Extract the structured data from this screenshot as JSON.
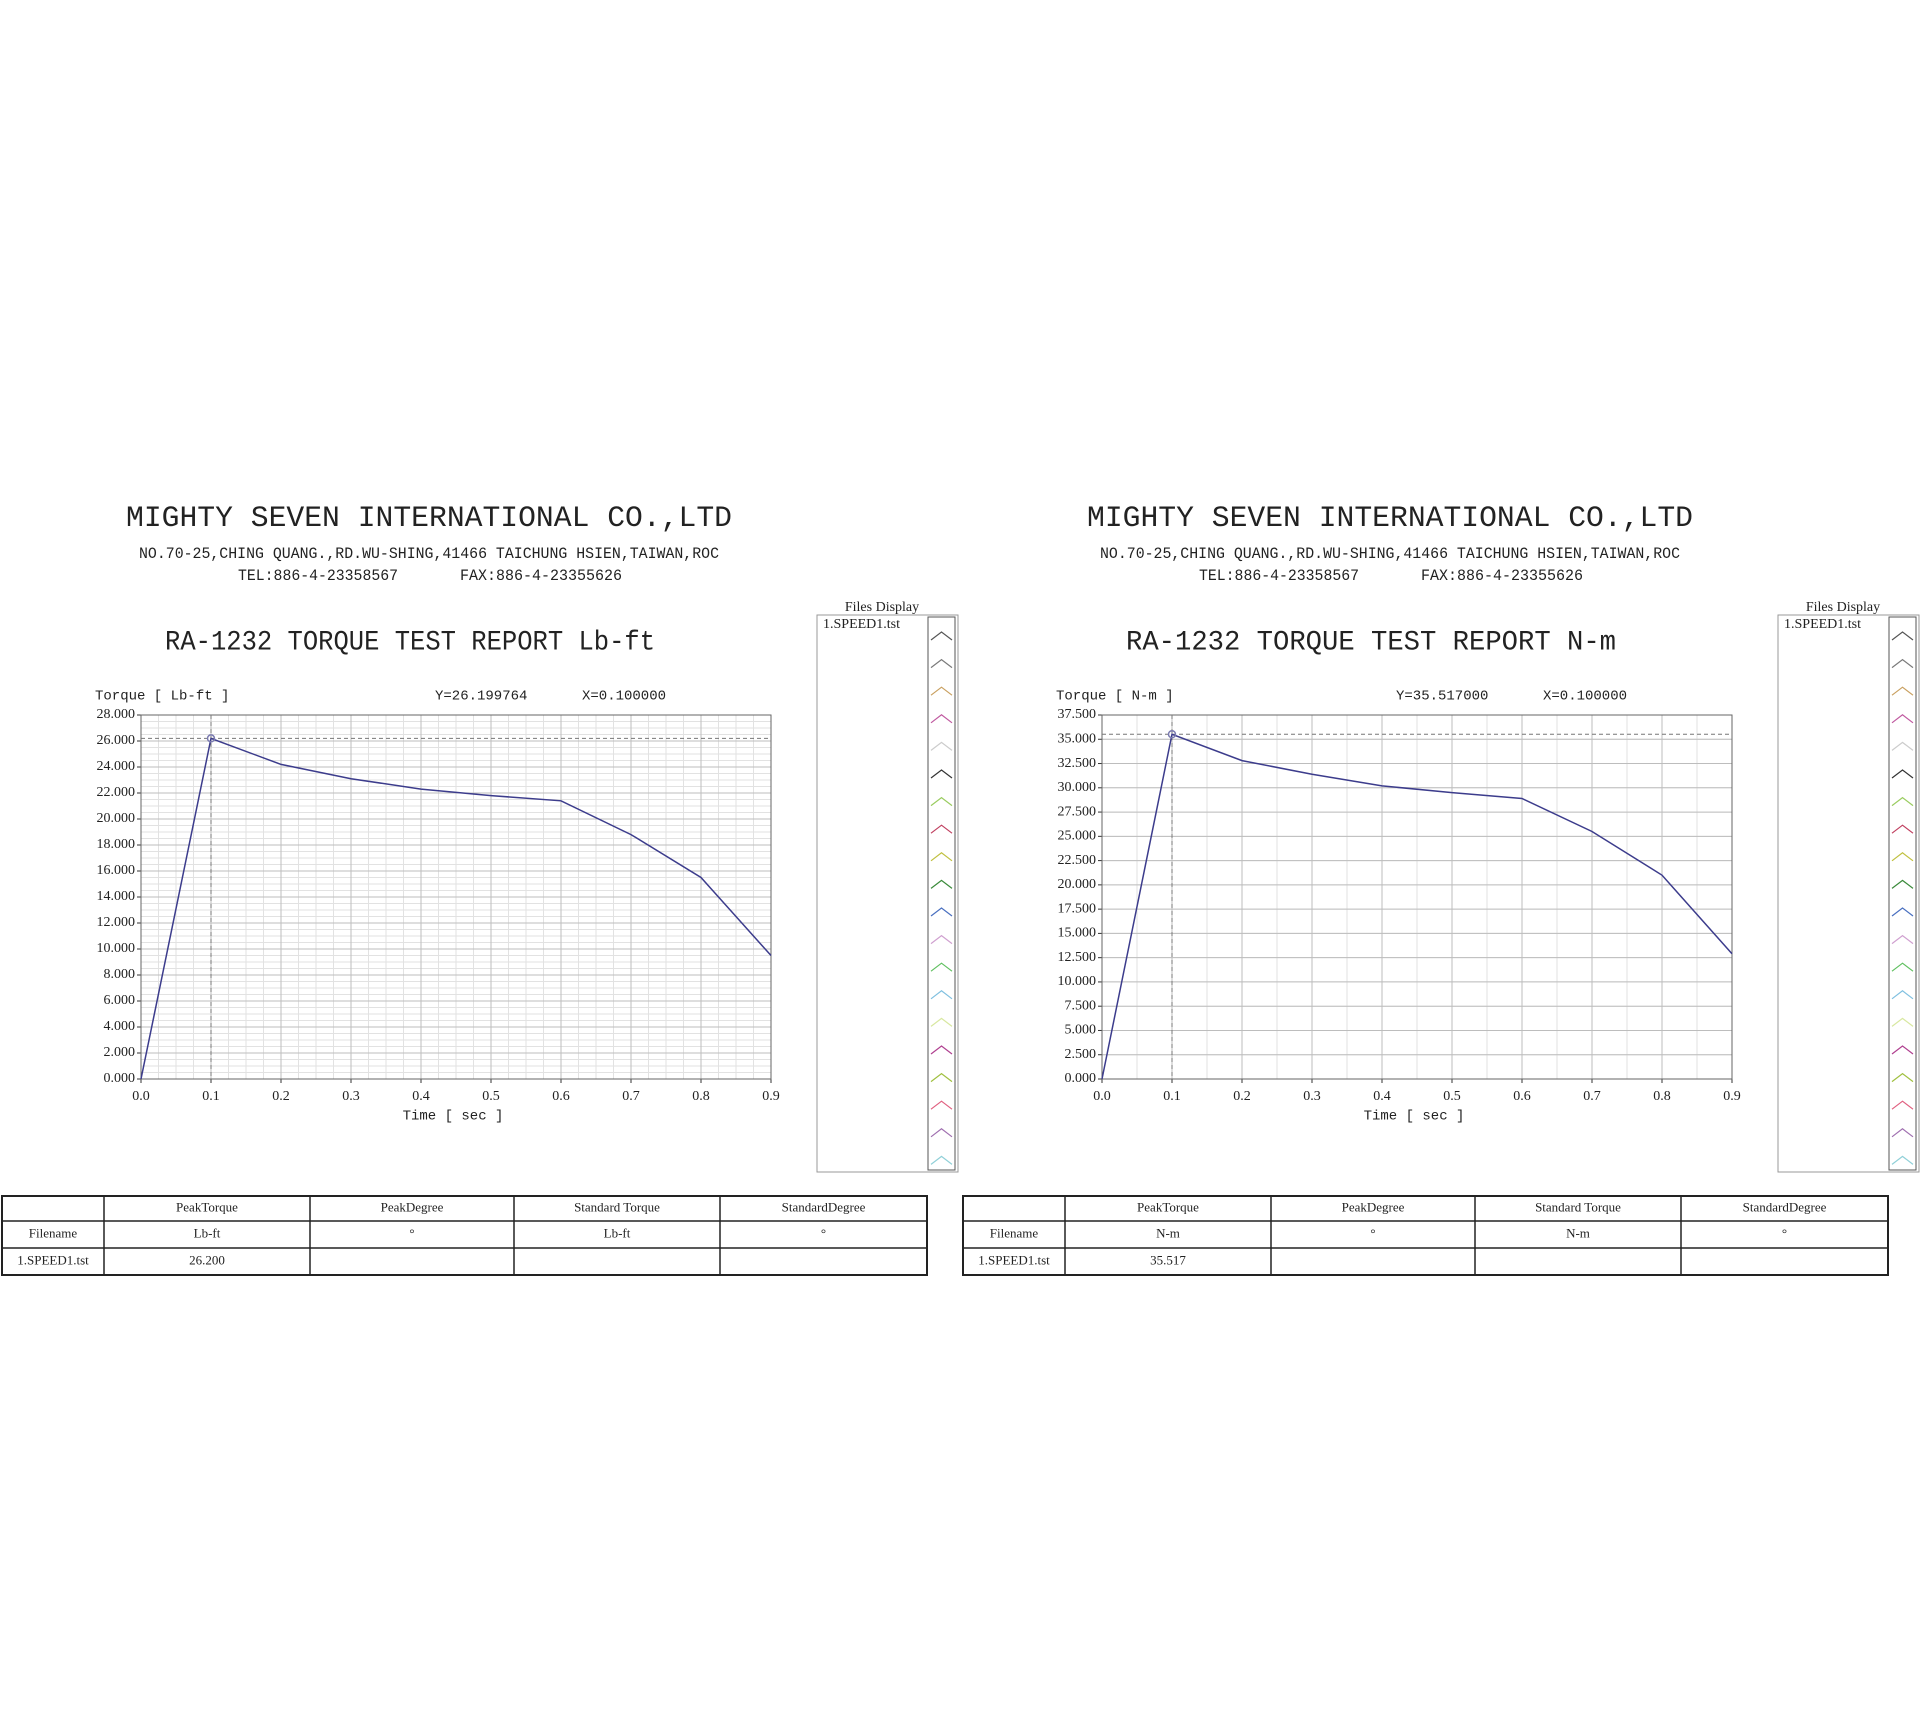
{
  "chart_data": [
    {
      "type": "line",
      "title": "RA-1232 TORQUE TEST REPORT Lb-ft",
      "y_label": "Torque [ Lb-ft ]",
      "x_label": "Time [ sec ]",
      "annotations": [
        "Y=26.199764",
        "X=0.100000"
      ],
      "x": [
        0,
        0.1,
        0.2,
        0.3,
        0.4,
        0.5,
        0.6,
        0.7,
        0.8,
        0.9
      ],
      "series": [
        {
          "name": "1.SPEED1.tst",
          "color": "#3c3c8c",
          "values": [
            0,
            26.2,
            24.2,
            23.1,
            22.3,
            21.8,
            21.4,
            18.8,
            15.5,
            9.5
          ]
        }
      ],
      "xlim": [
        0,
        0.9
      ],
      "ylim": [
        0,
        28
      ],
      "xticks": [
        {
          "value": 0,
          "label": "0.0"
        },
        0.1,
        0.2,
        0.3,
        0.4,
        0.5,
        0.6,
        0.7,
        0.8,
        0.9
      ],
      "yticks": [
        {
          "value": 0,
          "label": "0.000"
        },
        {
          "value": 2,
          "label": "2.000"
        },
        {
          "value": 4,
          "label": "4.000"
        },
        {
          "value": 6,
          "label": "6.000"
        },
        {
          "value": 8,
          "label": "8.000"
        },
        {
          "value": 10,
          "label": "10.000"
        },
        {
          "value": 12,
          "label": "12.000"
        },
        {
          "value": 14,
          "label": "14.000"
        },
        {
          "value": 16,
          "label": "16.000"
        },
        {
          "value": 18,
          "label": "18.000"
        },
        {
          "value": 20,
          "label": "20.000"
        },
        {
          "value": 22,
          "label": "22.000"
        },
        {
          "value": 24,
          "label": "24.000"
        },
        {
          "value": 26,
          "label": "26.000"
        },
        {
          "value": 28,
          "label": "28.000"
        }
      ],
      "grid": true
    },
    {
      "type": "line",
      "title": "RA-1232 TORQUE TEST REPORT N-m",
      "y_label": "Torque [ N-m ]",
      "x_label": "Time [ sec ]",
      "annotations": [
        "Y=35.517000",
        "X=0.100000"
      ],
      "x": [
        0,
        0.1,
        0.2,
        0.3,
        0.4,
        0.5,
        0.6,
        0.7,
        0.8,
        0.9
      ],
      "series": [
        {
          "name": "1.SPEED1.tst",
          "color": "#3c3c8c",
          "values": [
            0,
            35.517,
            32.8,
            31.4,
            30.2,
            29.5,
            28.9,
            25.5,
            21.0,
            12.9
          ]
        }
      ],
      "xlim": [
        0,
        0.9
      ],
      "ylim": [
        0,
        37.5
      ],
      "xticks": [
        {
          "value": 0,
          "label": "0.0"
        },
        0.1,
        0.2,
        0.3,
        0.4,
        0.5,
        0.6,
        0.7,
        0.8,
        0.9
      ],
      "yticks": [
        {
          "value": 0,
          "label": "0.000"
        },
        {
          "value": 2.5,
          "label": "2.500"
        },
        {
          "value": 5,
          "label": "5.000"
        },
        {
          "value": 7.5,
          "label": "7.500"
        },
        {
          "value": 10,
          "label": "10.000"
        },
        {
          "value": 12.5,
          "label": "12.500"
        },
        {
          "value": 15,
          "label": "15.000"
        },
        {
          "value": 17.5,
          "label": "17.500"
        },
        {
          "value": 20,
          "label": "20.000"
        },
        {
          "value": 22.5,
          "label": "22.500"
        },
        {
          "value": 25,
          "label": "25.000"
        },
        {
          "value": 27.5,
          "label": "27.500"
        },
        {
          "value": 30,
          "label": "30.000"
        },
        {
          "value": 32.5,
          "label": "32.500"
        },
        {
          "value": 35,
          "label": "35.000"
        },
        {
          "value": 37.5,
          "label": "37.500"
        }
      ],
      "grid": true
    }
  ],
  "reports": [
    {
      "company": "MIGHTY SEVEN INTERNATIONAL CO.,LTD",
      "address": "NO.70-25,CHING QUANG.,RD.WU-SHING,41466 TAICHUNG HSIEN,TAIWAN,ROC",
      "tel": "TEL:886-4-23358567",
      "fax": "FAX:886-4-23355626",
      "files_display": "Files Display",
      "table": {
        "header": [
          "PeakTorque",
          "PeakDegree",
          "Standard Torque",
          "StandardDegree"
        ],
        "unit_header": "Filename",
        "units": [
          "Lb-ft",
          "°",
          "Lb-ft",
          "°"
        ],
        "rows": [
          [
            "1.SPEED1.tst",
            "26.200"
          ]
        ]
      }
    },
    {
      "company": "MIGHTY SEVEN INTERNATIONAL CO.,LTD",
      "address": "NO.70-25,CHING QUANG.,RD.WU-SHING,41466 TAICHUNG HSIEN,TAIWAN,ROC",
      "tel": "TEL:886-4-23358567",
      "fax": "FAX:886-4-23355626",
      "files_display": "Files Display",
      "table": {
        "header": [
          "PeakTorque",
          "PeakDegree",
          "Standard Torque",
          "StandardDegree"
        ],
        "unit_header": "Filename",
        "units": [
          "N-m",
          "°",
          "N-m",
          "°"
        ],
        "rows": [
          [
            "1.SPEED1.tst",
            "35.517"
          ]
        ]
      }
    }
  ]
}
